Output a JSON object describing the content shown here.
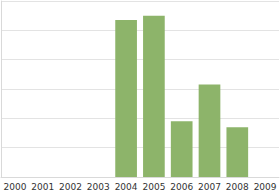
{
  "chart_data": {
    "type": "bar",
    "categories": [
      "2000",
      "2001",
      "2002",
      "2003",
      "2004",
      "2005",
      "2006",
      "2007",
      "2008",
      "2009"
    ],
    "values": [
      null,
      null,
      null,
      null,
      5.35,
      5.5,
      1.9,
      3.15,
      1.7,
      null
    ],
    "color": "#8db46a",
    "ylim": [
      0,
      6
    ],
    "yticks": [
      0,
      1,
      2,
      3,
      4,
      5,
      6
    ],
    "grid": true,
    "tick_labels": "x"
  }
}
